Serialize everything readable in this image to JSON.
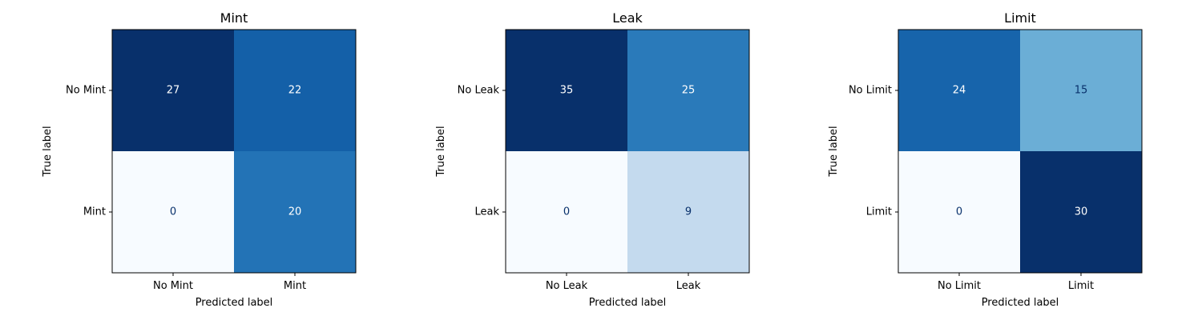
{
  "chart_data": [
    {
      "type": "heatmap",
      "title": "Mint",
      "xlabel": "Predicted label",
      "ylabel": "True label",
      "x_categories": [
        "No Mint",
        "Mint"
      ],
      "y_categories": [
        "No Mint",
        "Mint"
      ],
      "values": [
        [
          27,
          22
        ],
        [
          0,
          20
        ]
      ],
      "colormap": "Blues"
    },
    {
      "type": "heatmap",
      "title": "Leak",
      "xlabel": "Predicted label",
      "ylabel": "True label",
      "x_categories": [
        "No Leak",
        "Leak"
      ],
      "y_categories": [
        "No Leak",
        "Leak"
      ],
      "values": [
        [
          35,
          25
        ],
        [
          0,
          9
        ]
      ],
      "colormap": "Blues"
    },
    {
      "type": "heatmap",
      "title": "Limit",
      "xlabel": "Predicted label",
      "ylabel": "True label",
      "x_categories": [
        "No Limit",
        "Limit"
      ],
      "y_categories": [
        "No Limit",
        "Limit"
      ],
      "values": [
        [
          24,
          15
        ],
        [
          0,
          30
        ]
      ],
      "colormap": "Blues"
    }
  ]
}
